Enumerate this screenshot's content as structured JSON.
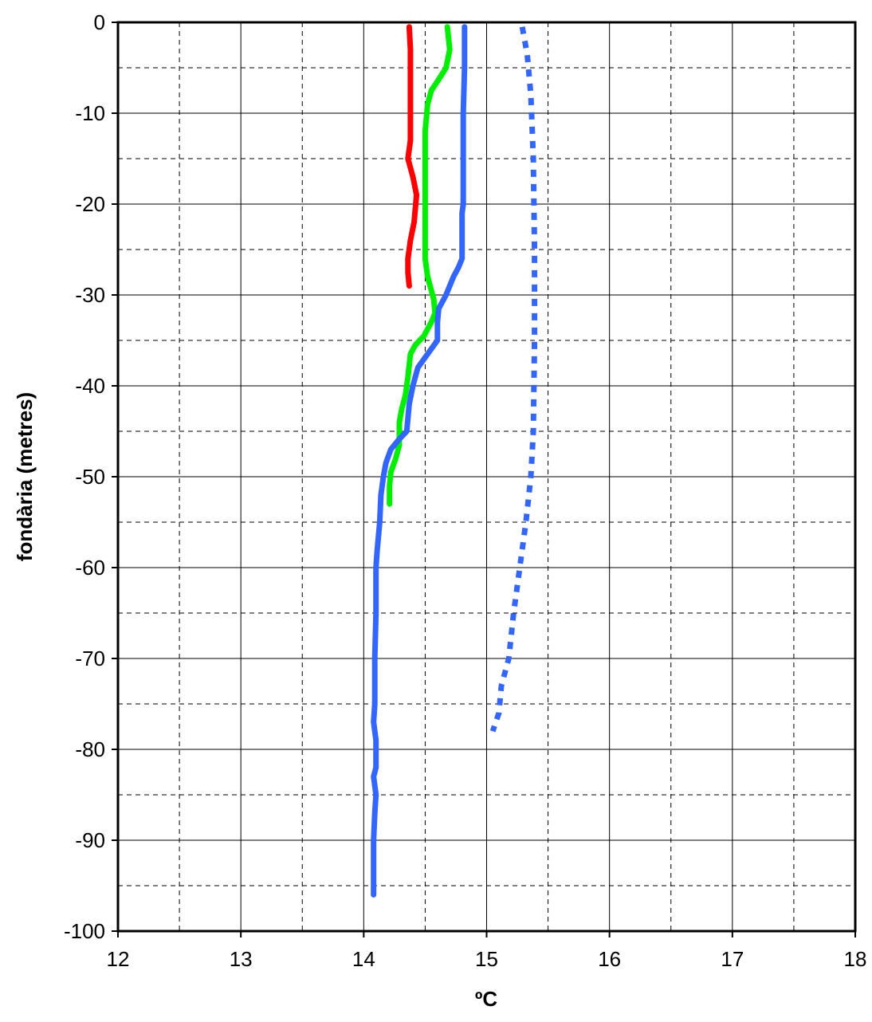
{
  "chart_data": {
    "type": "line",
    "title": "",
    "xlabel": "ºC",
    "ylabel": "fondària (metres)",
    "xlim": [
      12,
      18
    ],
    "ylim": [
      -100,
      0
    ],
    "x_major_ticks": [
      12,
      13,
      14,
      15,
      16,
      17,
      18
    ],
    "x_tick_labels": [
      "12",
      "13",
      "14",
      "15",
      "16",
      "17",
      "18"
    ],
    "x_minor_grid": [
      12.5,
      13.5,
      14.5,
      15.5,
      16.5,
      17.5
    ],
    "y_major_ticks": [
      0,
      -10,
      -20,
      -30,
      -40,
      -50,
      -60,
      -70,
      -80,
      -90,
      -100
    ],
    "y_tick_labels": [
      "0",
      "-10",
      "-20",
      "-30",
      "-40",
      "-50",
      "-60",
      "-70",
      "-80",
      "-90",
      "-100"
    ],
    "y_minor_grid": [
      -5,
      -15,
      -25,
      -35,
      -45,
      -55,
      -65,
      -75,
      -85,
      -95
    ],
    "grid": true,
    "legend": "none",
    "series": [
      {
        "color": "#ff0000",
        "style": "solid",
        "points": [
          [
            14.37,
            -0.5
          ],
          [
            14.38,
            -3
          ],
          [
            14.38,
            -8
          ],
          [
            14.38,
            -13
          ],
          [
            14.36,
            -15
          ],
          [
            14.4,
            -17
          ],
          [
            14.43,
            -19
          ],
          [
            14.41,
            -22
          ],
          [
            14.38,
            -24
          ],
          [
            14.36,
            -26
          ],
          [
            14.36,
            -27.5
          ],
          [
            14.37,
            -29
          ]
        ]
      },
      {
        "color": "#00ee00",
        "style": "solid",
        "points": [
          [
            14.68,
            -0.5
          ],
          [
            14.7,
            -3
          ],
          [
            14.67,
            -5
          ],
          [
            14.6,
            -6.5
          ],
          [
            14.55,
            -7.5
          ],
          [
            14.52,
            -9
          ],
          [
            14.5,
            -12
          ],
          [
            14.5,
            -20
          ],
          [
            14.5,
            -26
          ],
          [
            14.52,
            -28
          ],
          [
            14.55,
            -29.5
          ],
          [
            14.57,
            -30.5
          ],
          [
            14.58,
            -32
          ],
          [
            14.55,
            -33
          ],
          [
            14.49,
            -34.5
          ],
          [
            14.42,
            -35.5
          ],
          [
            14.38,
            -36.5
          ],
          [
            14.36,
            -39
          ],
          [
            14.34,
            -41
          ],
          [
            14.31,
            -42.5
          ],
          [
            14.29,
            -44
          ],
          [
            14.29,
            -46.5
          ],
          [
            14.26,
            -48
          ],
          [
            14.22,
            -49.5
          ],
          [
            14.21,
            -51
          ],
          [
            14.21,
            -53
          ]
        ]
      },
      {
        "color": "#3366ff",
        "style": "solid",
        "points": [
          [
            14.82,
            -0.5
          ],
          [
            14.82,
            -5
          ],
          [
            14.81,
            -10
          ],
          [
            14.81,
            -15
          ],
          [
            14.81,
            -20
          ],
          [
            14.8,
            -21
          ],
          [
            14.8,
            -26
          ],
          [
            14.77,
            -27
          ],
          [
            14.73,
            -28
          ],
          [
            14.67,
            -30
          ],
          [
            14.61,
            -31.5
          ],
          [
            14.6,
            -33
          ],
          [
            14.6,
            -35
          ],
          [
            14.52,
            -36.5
          ],
          [
            14.44,
            -38
          ],
          [
            14.4,
            -40
          ],
          [
            14.37,
            -42
          ],
          [
            14.35,
            -45
          ],
          [
            14.28,
            -46
          ],
          [
            14.22,
            -47
          ],
          [
            14.18,
            -48.5
          ],
          [
            14.16,
            -50
          ],
          [
            14.14,
            -52
          ],
          [
            14.13,
            -55
          ],
          [
            14.11,
            -58
          ],
          [
            14.1,
            -60
          ],
          [
            14.1,
            -65
          ],
          [
            14.09,
            -70
          ],
          [
            14.09,
            -75
          ],
          [
            14.08,
            -77
          ],
          [
            14.1,
            -79
          ],
          [
            14.1,
            -82
          ],
          [
            14.08,
            -83
          ],
          [
            14.1,
            -85
          ],
          [
            14.09,
            -87
          ],
          [
            14.08,
            -90
          ],
          [
            14.08,
            -93
          ],
          [
            14.08,
            -96
          ]
        ]
      },
      {
        "color": "#3366ff",
        "style": "dotted",
        "points": [
          [
            15.29,
            -0.5
          ],
          [
            15.33,
            -3.5
          ],
          [
            15.36,
            -8
          ],
          [
            15.38,
            -15
          ],
          [
            15.39,
            -25
          ],
          [
            15.39,
            -35
          ],
          [
            15.38,
            -45
          ],
          [
            15.36,
            -50
          ],
          [
            15.32,
            -55
          ],
          [
            15.27,
            -60
          ],
          [
            15.22,
            -65
          ],
          [
            15.18,
            -70
          ],
          [
            15.12,
            -73
          ],
          [
            15.1,
            -76
          ],
          [
            15.05,
            -78
          ]
        ]
      }
    ]
  }
}
